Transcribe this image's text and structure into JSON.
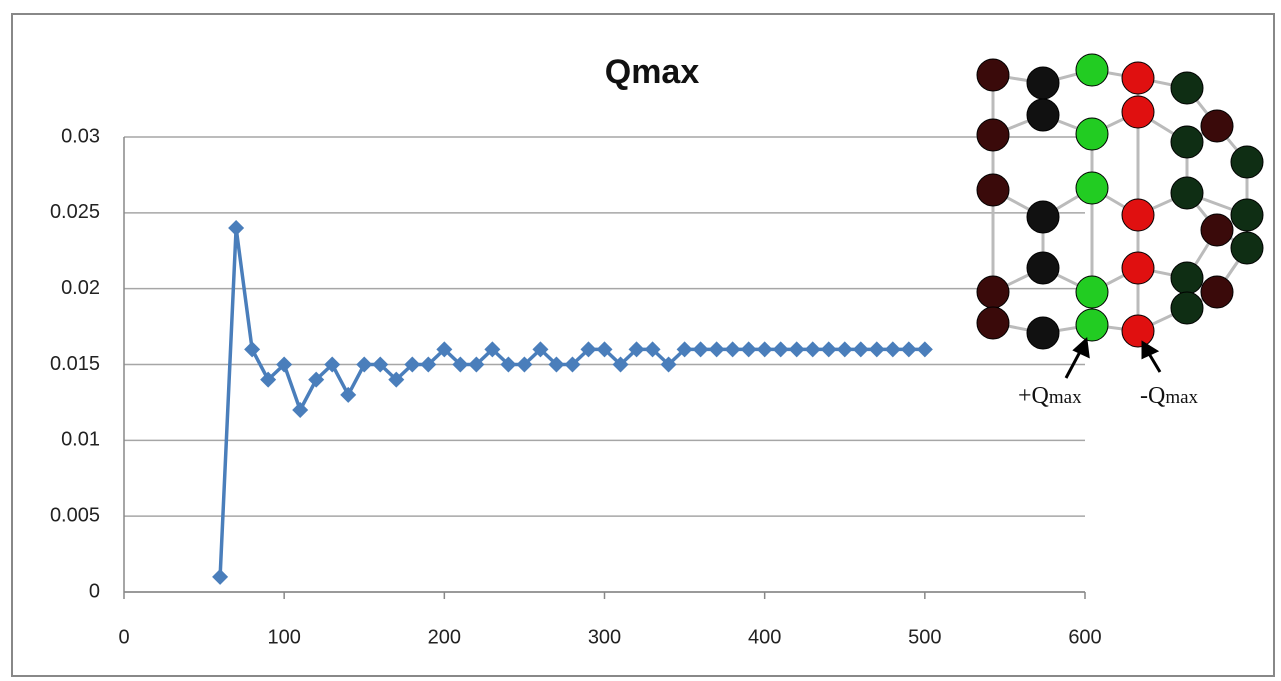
{
  "chart_data": {
    "type": "line",
    "title": "Qmax",
    "x": [
      60,
      70,
      80,
      90,
      100,
      110,
      120,
      130,
      140,
      150,
      160,
      170,
      180,
      190,
      200,
      210,
      220,
      230,
      240,
      250,
      260,
      270,
      280,
      290,
      300,
      310,
      320,
      330,
      340,
      350,
      360,
      370,
      380,
      390,
      400,
      410,
      420,
      430,
      440,
      450,
      460,
      470,
      480,
      490,
      500
    ],
    "values": [
      0.001,
      0.024,
      0.016,
      0.014,
      0.015,
      0.012,
      0.014,
      0.015,
      0.013,
      0.015,
      0.015,
      0.014,
      0.015,
      0.015,
      0.016,
      0.015,
      0.015,
      0.016,
      0.015,
      0.015,
      0.016,
      0.015,
      0.015,
      0.016,
      0.016,
      0.015,
      0.016,
      0.016,
      0.015,
      0.016,
      0.016,
      0.016,
      0.016,
      0.016,
      0.016,
      0.016,
      0.016,
      0.016,
      0.016,
      0.016,
      0.016,
      0.016,
      0.016,
      0.016,
      0.016
    ],
    "color": "#4a7ebb",
    "xlim": [
      0,
      600
    ],
    "xticks": [
      0,
      100,
      200,
      300,
      400,
      500,
      600
    ],
    "ylim": [
      0,
      0.03
    ],
    "yticks": [
      0,
      0.005,
      0.01,
      0.015,
      0.02,
      0.025,
      0.03
    ],
    "grid": true,
    "annotations": [
      {
        "base": "+Q",
        "subscript": "max"
      },
      {
        "base": "-Q",
        "subscript": "max"
      }
    ]
  }
}
